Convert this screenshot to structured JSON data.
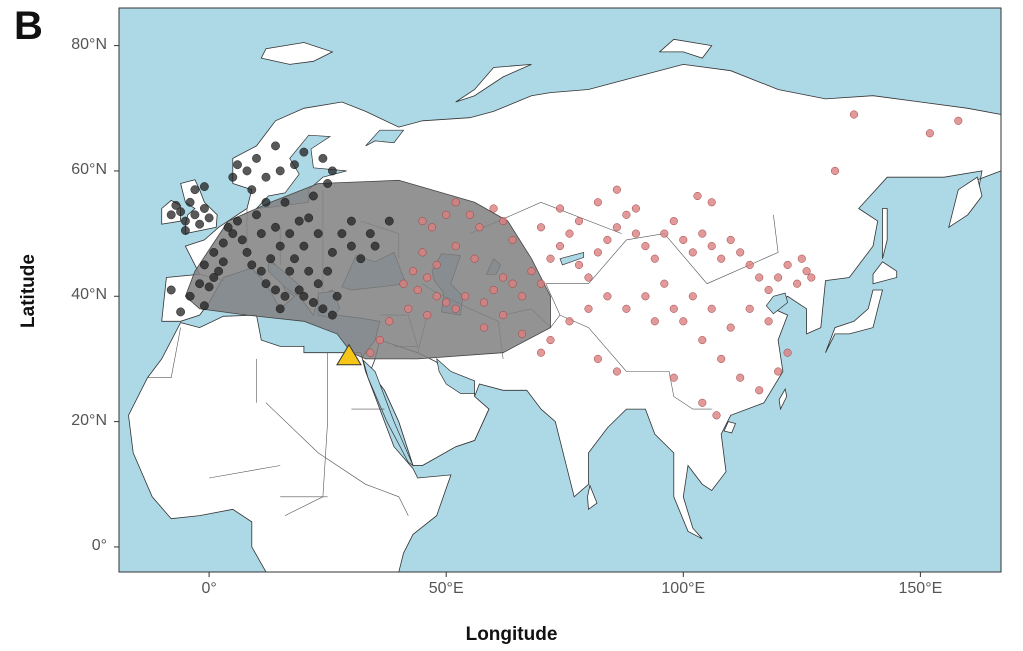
{
  "panel_label": "B",
  "axes": {
    "xlabel": "Longitude",
    "ylabel": "Latitude",
    "xlim": [
      -19,
      167
    ],
    "ylim": [
      -4,
      86
    ]
  },
  "x_ticks": [
    {
      "value": 0,
      "label": "0°"
    },
    {
      "value": 50,
      "label": "50°E"
    },
    {
      "value": 100,
      "label": "100°E"
    },
    {
      "value": 150,
      "label": "150°E"
    }
  ],
  "y_ticks": [
    {
      "value": 0,
      "label": "0°"
    },
    {
      "value": 20,
      "label": "20°N"
    },
    {
      "value": 40,
      "label": "40°N"
    },
    {
      "value": 60,
      "label": "60°N"
    },
    {
      "value": 80,
      "label": "80°N"
    }
  ],
  "colors": {
    "ocean": "#add8e6",
    "land": "#ffffff",
    "border": "#333333",
    "hull": "#808080",
    "black_points": "#222222",
    "red_points": "#d98080",
    "triangle": "#f5c518"
  },
  "chart_data": {
    "type": "scatter",
    "map_extent": "Europe, Africa and Asia",
    "hull_polygon_lonlat": [
      [
        -3,
        44
      ],
      [
        4,
        52
      ],
      [
        13,
        55
      ],
      [
        23,
        58
      ],
      [
        40,
        58.5
      ],
      [
        56,
        55
      ],
      [
        63,
        52
      ],
      [
        68,
        46
      ],
      [
        72,
        40
      ],
      [
        72,
        35
      ],
      [
        62,
        31
      ],
      [
        44,
        30
      ],
      [
        33,
        30
      ],
      [
        30,
        31
      ],
      [
        27,
        34
      ],
      [
        20,
        36
      ],
      [
        8,
        37
      ],
      [
        -2,
        38
      ],
      [
        -5,
        40
      ]
    ],
    "marker": {
      "type": "triangle",
      "lon": 29.5,
      "lat": 30.5
    },
    "black_points_lonlat": [
      [
        -5,
        52
      ],
      [
        -3,
        53
      ],
      [
        -2,
        51.5
      ],
      [
        -1,
        54
      ],
      [
        -4,
        55
      ],
      [
        -6,
        53.5
      ],
      [
        -8,
        53
      ],
      [
        0,
        52.5
      ],
      [
        -3,
        57
      ],
      [
        -1,
        57.5
      ],
      [
        -5,
        50.5
      ],
      [
        -7,
        54.5
      ],
      [
        -2,
        42
      ],
      [
        -4,
        40
      ],
      [
        -6,
        37.5
      ],
      [
        -8,
        41
      ],
      [
        -1,
        38.5
      ],
      [
        0,
        41.5
      ],
      [
        2,
        44
      ],
      [
        1,
        47
      ],
      [
        3,
        48.5
      ],
      [
        4,
        51
      ],
      [
        6,
        52
      ],
      [
        5,
        50
      ],
      [
        7,
        49
      ],
      [
        8,
        47
      ],
      [
        9,
        45
      ],
      [
        11,
        44
      ],
      [
        12,
        42
      ],
      [
        14,
        41
      ],
      [
        16,
        40
      ],
      [
        15,
        38
      ],
      [
        13,
        46
      ],
      [
        15,
        48
      ],
      [
        17,
        50
      ],
      [
        19,
        52
      ],
      [
        21,
        52.5
      ],
      [
        23,
        50
      ],
      [
        20,
        48
      ],
      [
        18,
        46
      ],
      [
        21,
        44
      ],
      [
        23,
        42
      ],
      [
        25,
        44
      ],
      [
        26,
        47
      ],
      [
        28,
        50
      ],
      [
        30,
        52
      ],
      [
        10,
        53
      ],
      [
        12,
        55
      ],
      [
        9,
        57
      ],
      [
        12,
        59
      ],
      [
        15,
        60
      ],
      [
        18,
        61
      ],
      [
        20,
        63
      ],
      [
        24,
        62
      ],
      [
        26,
        60
      ],
      [
        25,
        58
      ],
      [
        22,
        56
      ],
      [
        10,
        62
      ],
      [
        14,
        64
      ],
      [
        6,
        61
      ],
      [
        8,
        60
      ],
      [
        5,
        59
      ],
      [
        27,
        40
      ],
      [
        24,
        38
      ],
      [
        22,
        39
      ],
      [
        26,
        37
      ],
      [
        20,
        40
      ],
      [
        32,
        46
      ],
      [
        35,
        48
      ],
      [
        30,
        48
      ],
      [
        34,
        50
      ],
      [
        38,
        52
      ],
      [
        16,
        55
      ],
      [
        11,
        50
      ],
      [
        14,
        51
      ],
      [
        17,
        44
      ],
      [
        19,
        41
      ],
      [
        3,
        45.5
      ],
      [
        -1,
        45
      ],
      [
        1,
        43
      ]
    ],
    "red_points_lonlat": [
      [
        45,
        52
      ],
      [
        47,
        51
      ],
      [
        50,
        53
      ],
      [
        52,
        55
      ],
      [
        55,
        53
      ],
      [
        57,
        51
      ],
      [
        60,
        54
      ],
      [
        62,
        52
      ],
      [
        45,
        47
      ],
      [
        43,
        44
      ],
      [
        41,
        42
      ],
      [
        44,
        41
      ],
      [
        46,
        43
      ],
      [
        48,
        40
      ],
      [
        50,
        39
      ],
      [
        52,
        38
      ],
      [
        54,
        40
      ],
      [
        58,
        39
      ],
      [
        60,
        41
      ],
      [
        62,
        43
      ],
      [
        64,
        42
      ],
      [
        66,
        40
      ],
      [
        68,
        44
      ],
      [
        70,
        42
      ],
      [
        72,
        46
      ],
      [
        74,
        48
      ],
      [
        76,
        50
      ],
      [
        78,
        45
      ],
      [
        80,
        43
      ],
      [
        82,
        47
      ],
      [
        84,
        49
      ],
      [
        86,
        51
      ],
      [
        88,
        53
      ],
      [
        90,
        50
      ],
      [
        92,
        48
      ],
      [
        94,
        46
      ],
      [
        96,
        50
      ],
      [
        98,
        52
      ],
      [
        100,
        49
      ],
      [
        102,
        47
      ],
      [
        104,
        50
      ],
      [
        106,
        48
      ],
      [
        108,
        46
      ],
      [
        110,
        49
      ],
      [
        112,
        47
      ],
      [
        114,
        45
      ],
      [
        116,
        43
      ],
      [
        118,
        41
      ],
      [
        120,
        43
      ],
      [
        122,
        45
      ],
      [
        124,
        42
      ],
      [
        126,
        44
      ],
      [
        125,
        46
      ],
      [
        127,
        43
      ],
      [
        96,
        42
      ],
      [
        92,
        40
      ],
      [
        88,
        38
      ],
      [
        84,
        40
      ],
      [
        80,
        38
      ],
      [
        76,
        36
      ],
      [
        72,
        33
      ],
      [
        70,
        31
      ],
      [
        100,
        36
      ],
      [
        104,
        33
      ],
      [
        108,
        30
      ],
      [
        112,
        27
      ],
      [
        116,
        25
      ],
      [
        120,
        28
      ],
      [
        122,
        31
      ],
      [
        110,
        35
      ],
      [
        114,
        38
      ],
      [
        118,
        36
      ],
      [
        106,
        38
      ],
      [
        102,
        40
      ],
      [
        98,
        38
      ],
      [
        94,
        36
      ],
      [
        132,
        60
      ],
      [
        152,
        66
      ],
      [
        158,
        68
      ],
      [
        136,
        69
      ],
      [
        78,
        52
      ],
      [
        82,
        55
      ],
      [
        86,
        57
      ],
      [
        64,
        49
      ],
      [
        56,
        46
      ],
      [
        52,
        48
      ],
      [
        48,
        45
      ],
      [
        46,
        37
      ],
      [
        42,
        38
      ],
      [
        38,
        36
      ],
      [
        36,
        33
      ],
      [
        34,
        31
      ],
      [
        58,
        35
      ],
      [
        62,
        37
      ],
      [
        66,
        34
      ],
      [
        82,
        30
      ],
      [
        86,
        28
      ],
      [
        98,
        27
      ],
      [
        104,
        23
      ],
      [
        107,
        21
      ],
      [
        103,
        56
      ],
      [
        106,
        55
      ],
      [
        90,
        54
      ],
      [
        74,
        54
      ],
      [
        70,
        51
      ]
    ]
  }
}
